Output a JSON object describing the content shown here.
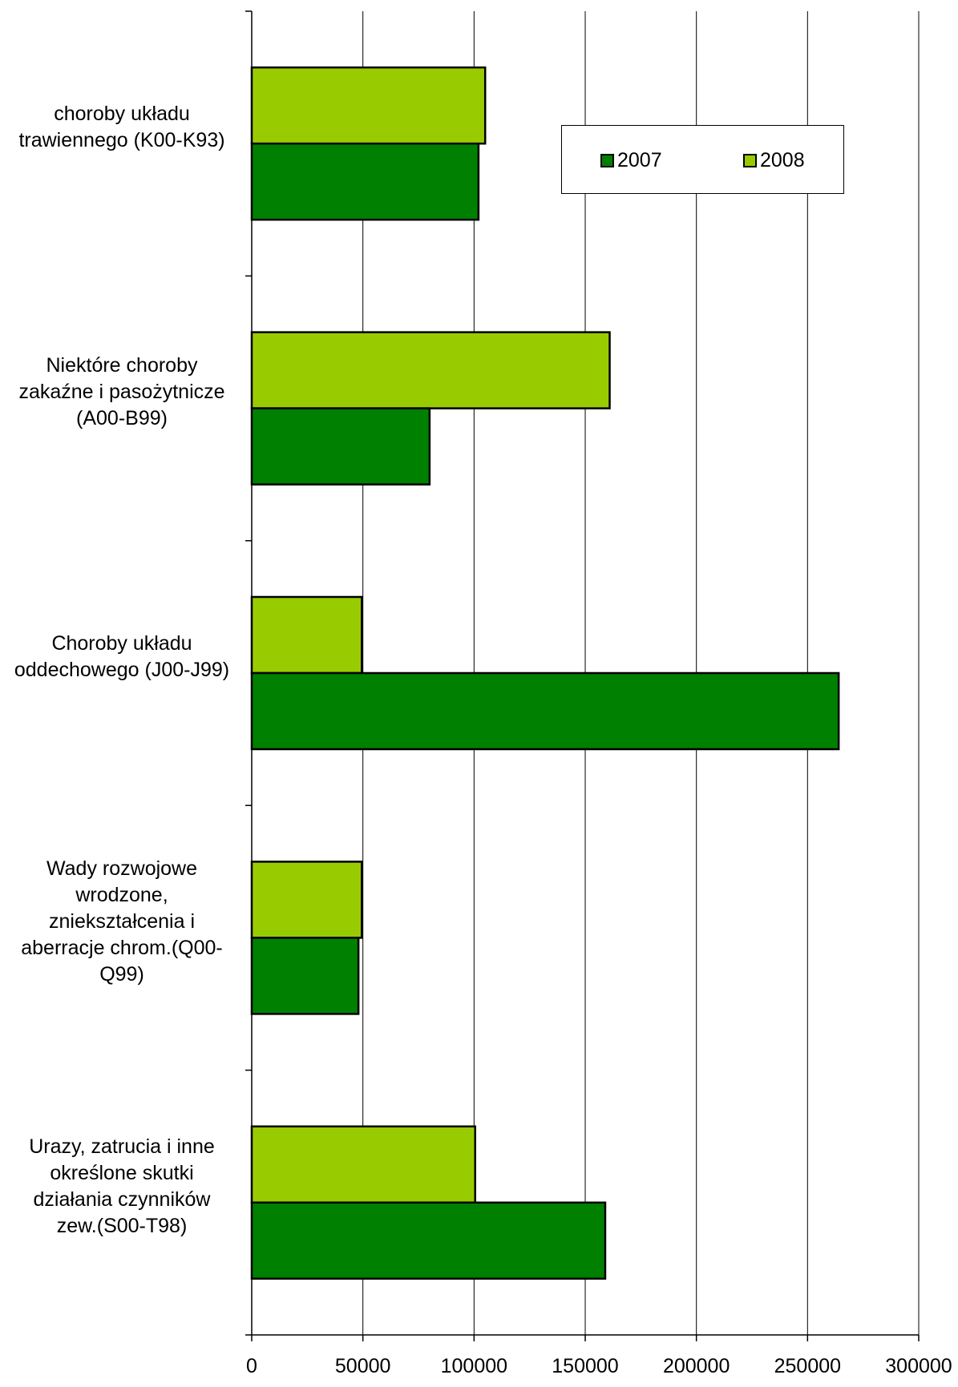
{
  "chart_data": {
    "type": "bar",
    "orientation": "horizontal",
    "categories": [
      [
        "choroby układu",
        "trawiennego (K00-K93)"
      ],
      [
        "Niektóre choroby",
        "zakaźne i pasożytnicze",
        "(A00-B99)"
      ],
      [
        "Choroby układu",
        "oddechowego (J00-J99)"
      ],
      [
        "Wady rozwojowe",
        "wrodzone,",
        "zniekształcenia i",
        "aberracje chrom.(Q00-",
        "Q99)"
      ],
      [
        "Urazy, zatrucia i inne",
        "określone skutki",
        "działania czynników",
        "zew.(S00-T98)"
      ]
    ],
    "series": [
      {
        "name": "2007",
        "color": "#008000",
        "values": [
          102000,
          80000,
          264000,
          48000,
          159000
        ]
      },
      {
        "name": "2008",
        "color": "#99cc00",
        "values": [
          105000,
          161000,
          49500,
          49500,
          100500
        ]
      }
    ],
    "xlim": [
      0,
      300000
    ],
    "xticks": [
      "0",
      "50000",
      "100000",
      "150000",
      "200000",
      "250000",
      "300000"
    ],
    "grid": true,
    "legend_position": "top-right"
  }
}
